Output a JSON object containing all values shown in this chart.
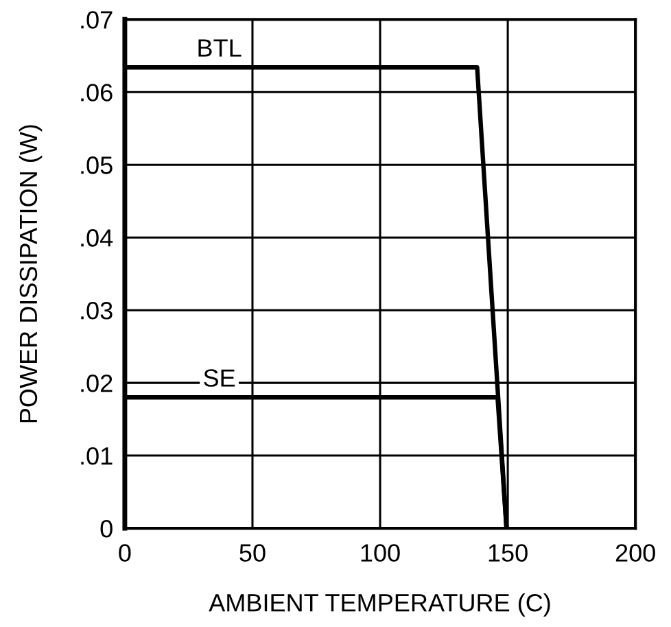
{
  "chart_data": {
    "type": "line",
    "xlabel": "AMBIENT TEMPERATURE (C)",
    "ylabel": "POWER DISSIPATION (W)",
    "series": [
      {
        "name": "BTL",
        "color": "#000000",
        "x": [
          0,
          138,
          149.5
        ],
        "values": [
          0.0634,
          0.0634,
          0
        ]
      },
      {
        "name": "SE",
        "color": "#000000",
        "x": [
          0,
          146,
          149.5
        ],
        "values": [
          0.018,
          0.018,
          0
        ]
      }
    ],
    "xlim": [
      0,
      200
    ],
    "xticks": [
      0,
      50,
      100,
      150,
      200
    ],
    "ylim": [
      0,
      0.07
    ],
    "yticks": [
      0,
      {
        "value": 0.01,
        "label": ".01"
      },
      {
        "value": 0.02,
        "label": ".02"
      },
      {
        "value": 0.03,
        "label": ".03"
      },
      {
        "value": 0.04,
        "label": ".04"
      },
      {
        "value": 0.05,
        "label": ".05"
      },
      {
        "value": 0.06,
        "label": ".06"
      },
      {
        "value": 0.07,
        "label": ".07"
      }
    ],
    "grid": true,
    "legend": false,
    "marker": "none",
    "line_style": "solid"
  }
}
